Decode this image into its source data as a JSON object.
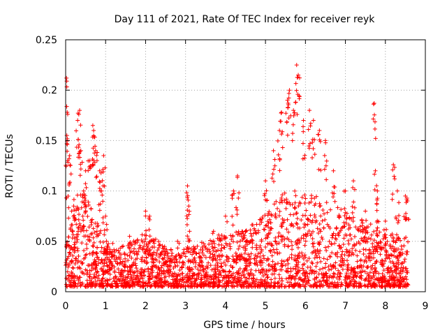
{
  "chart_data": {
    "type": "scatter",
    "title": "Day 111 of 2021, Rate Of TEC Index for receiver reyk",
    "xlabel": "GPS time / hours",
    "ylabel": "ROTI / TECUs",
    "xlim": [
      0,
      9
    ],
    "ylim": [
      0,
      0.25
    ],
    "xticks": [
      "0",
      "1",
      "2",
      "3",
      "4",
      "5",
      "6",
      "7",
      "8",
      "9"
    ],
    "yticks": [
      "0",
      "0.05",
      "0.1",
      "0.15",
      "0.2",
      "0.25"
    ],
    "grid": true,
    "marker": "+",
    "color": "#ff0000",
    "series": [
      {
        "name": "ROTI",
        "points": [
          [
            0.02,
            0.212
          ],
          [
            0.03,
            0.155
          ],
          [
            0.05,
            0.13
          ],
          [
            0.1,
            0.135
          ],
          [
            0.15,
            0.08
          ],
          [
            0.2,
            0.085
          ],
          [
            0.3,
            0.17
          ],
          [
            0.35,
            0.18
          ],
          [
            0.38,
            0.14
          ],
          [
            0.45,
            0.1
          ],
          [
            0.5,
            0.12
          ],
          [
            0.6,
            0.13
          ],
          [
            0.68,
            0.165
          ],
          [
            0.7,
            0.16
          ],
          [
            0.75,
            0.14
          ],
          [
            0.85,
            0.12
          ],
          [
            0.9,
            0.1
          ],
          [
            0.95,
            0.135
          ],
          [
            1.0,
            0.075
          ],
          [
            1.05,
            0.04
          ],
          [
            1.6,
            0.055
          ],
          [
            2.0,
            0.08
          ],
          [
            2.1,
            0.075
          ],
          [
            2.2,
            0.05
          ],
          [
            2.8,
            0.05
          ],
          [
            3.05,
            0.105
          ],
          [
            3.08,
            0.085
          ],
          [
            3.1,
            0.06
          ],
          [
            3.7,
            0.06
          ],
          [
            4.0,
            0.075
          ],
          [
            4.2,
            0.1
          ],
          [
            4.3,
            0.115
          ],
          [
            4.5,
            0.06
          ],
          [
            4.9,
            0.05
          ],
          [
            5.0,
            0.11
          ],
          [
            5.2,
            0.14
          ],
          [
            5.35,
            0.16
          ],
          [
            5.4,
            0.178
          ],
          [
            5.55,
            0.19
          ],
          [
            5.6,
            0.2
          ],
          [
            5.7,
            0.18
          ],
          [
            5.78,
            0.225
          ],
          [
            5.82,
            0.215
          ],
          [
            5.95,
            0.17
          ],
          [
            6.1,
            0.18
          ],
          [
            6.2,
            0.17
          ],
          [
            6.35,
            0.16
          ],
          [
            6.5,
            0.15
          ],
          [
            6.7,
            0.12
          ],
          [
            7.0,
            0.1
          ],
          [
            7.2,
            0.11
          ],
          [
            7.5,
            0.08
          ],
          [
            7.72,
            0.187
          ],
          [
            7.75,
            0.12
          ],
          [
            7.8,
            0.1
          ],
          [
            8.0,
            0.07
          ],
          [
            8.2,
            0.126
          ],
          [
            8.3,
            0.1
          ],
          [
            8.5,
            0.095
          ],
          [
            8.55,
            0.09
          ]
        ],
        "baseline_band": {
          "description": "dense cloud of points between 0.005 and the envelope across the full span",
          "x_range": [
            0,
            8.57
          ],
          "envelope": [
            [
              0.0,
              0.09
            ],
            [
              0.5,
              0.1
            ],
            [
              1.0,
              0.05
            ],
            [
              1.5,
              0.045
            ],
            [
              2.0,
              0.06
            ],
            [
              2.5,
              0.045
            ],
            [
              3.0,
              0.045
            ],
            [
              3.5,
              0.05
            ],
            [
              4.0,
              0.06
            ],
            [
              4.5,
              0.06
            ],
            [
              5.0,
              0.08
            ],
            [
              5.5,
              0.1
            ],
            [
              6.0,
              0.1
            ],
            [
              6.5,
              0.09
            ],
            [
              7.0,
              0.08
            ],
            [
              7.5,
              0.07
            ],
            [
              8.0,
              0.06
            ],
            [
              8.57,
              0.055
            ]
          ]
        }
      }
    ]
  }
}
